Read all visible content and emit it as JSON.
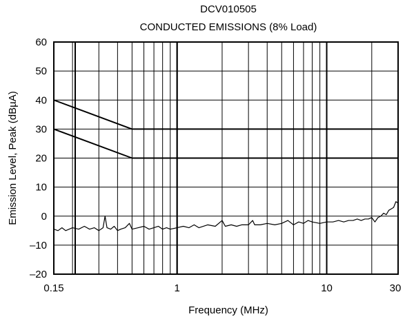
{
  "chart_data": {
    "type": "line",
    "title": "DCV010505",
    "subtitle": "CONDUCTED EMISSIONS (8% Load)",
    "xlabel": "Frequency (MHz)",
    "ylabel": "Emission Level, Peak (dBµA)",
    "x_scale": "log",
    "xlim": [
      0.15,
      30
    ],
    "ylim": [
      -20,
      60
    ],
    "x_tick_labels": [
      "0.15",
      "1",
      "10",
      "30"
    ],
    "x_tick_values": [
      0.15,
      1,
      10,
      30
    ],
    "y_tick_labels": [
      "–20",
      "–10",
      "0",
      "10",
      "20",
      "30",
      "40",
      "50",
      "60"
    ],
    "y_tick_values": [
      -20,
      -10,
      0,
      10,
      20,
      30,
      40,
      50,
      60
    ],
    "grid": true,
    "series": [
      {
        "values": [
          [
            0.15,
            40
          ],
          [
            0.5,
            30
          ],
          [
            30,
            30
          ]
        ]
      },
      {
        "values": [
          [
            0.15,
            30
          ],
          [
            0.5,
            20
          ],
          [
            30,
            20
          ]
        ]
      },
      {
        "values": [
          [
            0.15,
            -4.5
          ],
          [
            0.16,
            -5
          ],
          [
            0.17,
            -4
          ],
          [
            0.18,
            -5
          ],
          [
            0.19,
            -4.5
          ],
          [
            0.2,
            -4
          ],
          [
            0.22,
            -4.5
          ],
          [
            0.24,
            -3.5
          ],
          [
            0.26,
            -4.5
          ],
          [
            0.28,
            -4
          ],
          [
            0.3,
            -5
          ],
          [
            0.32,
            -4
          ],
          [
            0.33,
            0
          ],
          [
            0.34,
            -4
          ],
          [
            0.36,
            -4.5
          ],
          [
            0.38,
            -3.5
          ],
          [
            0.4,
            -5
          ],
          [
            0.42,
            -4.5
          ],
          [
            0.45,
            -4
          ],
          [
            0.48,
            -2.5
          ],
          [
            0.5,
            -4.5
          ],
          [
            0.55,
            -4
          ],
          [
            0.6,
            -3.5
          ],
          [
            0.65,
            -4.5
          ],
          [
            0.7,
            -4
          ],
          [
            0.75,
            -3.5
          ],
          [
            0.8,
            -4.5
          ],
          [
            0.85,
            -4
          ],
          [
            0.9,
            -4.5
          ],
          [
            1.0,
            -4
          ],
          [
            1.1,
            -3.5
          ],
          [
            1.2,
            -4
          ],
          [
            1.3,
            -3
          ],
          [
            1.4,
            -4
          ],
          [
            1.5,
            -3.5
          ],
          [
            1.6,
            -3
          ],
          [
            1.8,
            -3.5
          ],
          [
            2.0,
            -1.5
          ],
          [
            2.1,
            -3.5
          ],
          [
            2.3,
            -3
          ],
          [
            2.5,
            -3.5
          ],
          [
            2.7,
            -3
          ],
          [
            3.0,
            -3
          ],
          [
            3.2,
            -1.5
          ],
          [
            3.3,
            -3
          ],
          [
            3.6,
            -3
          ],
          [
            4.0,
            -2.5
          ],
          [
            4.5,
            -3
          ],
          [
            5.0,
            -2.5
          ],
          [
            5.5,
            -1.5
          ],
          [
            6.0,
            -3
          ],
          [
            6.5,
            -2
          ],
          [
            7.0,
            -2.5
          ],
          [
            7.5,
            -1.5
          ],
          [
            8.0,
            -2
          ],
          [
            9.0,
            -2.5
          ],
          [
            10.0,
            -2
          ],
          [
            11.0,
            -2
          ],
          [
            12.0,
            -1.5
          ],
          [
            13.0,
            -2
          ],
          [
            14.0,
            -1.5
          ],
          [
            15.0,
            -1.5
          ],
          [
            16.0,
            -1
          ],
          [
            17.0,
            -1.5
          ],
          [
            18.0,
            -1
          ],
          [
            19.0,
            -1
          ],
          [
            20.0,
            -0.5
          ],
          [
            21.0,
            -2
          ],
          [
            22.0,
            -0.5
          ],
          [
            23.0,
            0
          ],
          [
            24.0,
            1
          ],
          [
            25.0,
            0.5
          ],
          [
            26.0,
            2
          ],
          [
            27.0,
            2.5
          ],
          [
            28.0,
            3
          ],
          [
            29.0,
            5
          ],
          [
            30.0,
            4.5
          ]
        ]
      }
    ]
  }
}
